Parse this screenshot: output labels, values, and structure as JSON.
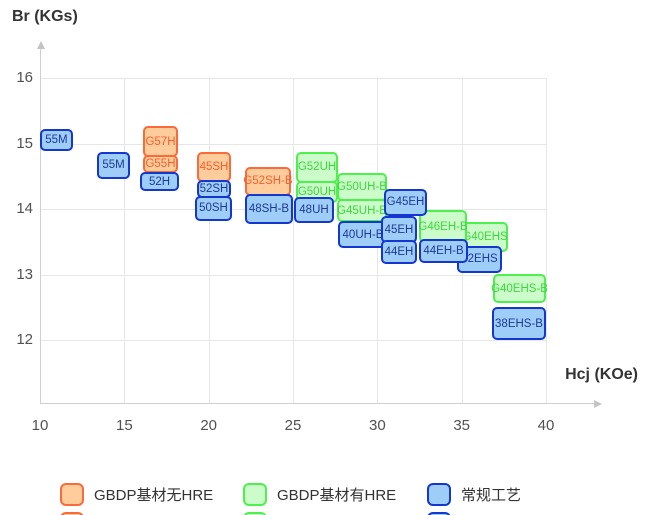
{
  "chart_data": {
    "type": "scatter",
    "mark_style": "labeled-range-box",
    "title": "",
    "xlabel": "Hcj (KOe)",
    "ylabel": "Br (KGs)",
    "x_ticks": [
      10,
      15,
      20,
      25,
      30,
      35,
      40
    ],
    "y_ticks": [
      16,
      15,
      14,
      13,
      12
    ],
    "xlim": [
      10,
      40
    ],
    "ylim": [
      12,
      16
    ],
    "grid": true,
    "legend_position": "bottom",
    "series_styles": {
      "gbdp_no_hre": {
        "name": "GBDP基材无HRE",
        "fill": "#ffcc9b",
        "border": "#fb6a3b",
        "text": "#f95e2d"
      },
      "gbdp_hre": {
        "name": "GBDP基材有HRE",
        "fill": "#cdfccb",
        "border": "#4ef04e",
        "text": "#3bd93b"
      },
      "conventional": {
        "name": "常规工艺",
        "fill": "#9ecdf8",
        "border": "#1437cf",
        "text": "#1c3a96"
      }
    },
    "points": [
      {
        "label": "G57H",
        "series": "gbdp_no_hre",
        "hcj": [
          16.11,
          18.18
        ],
        "br": [
          14.79,
          15.27
        ]
      },
      {
        "label": "G55H",
        "series": "gbdp_no_hre",
        "hcj": [
          16.11,
          18.18
        ],
        "br": [
          14.55,
          14.82
        ]
      },
      {
        "label": "45SH",
        "series": "gbdp_no_hre",
        "hcj": [
          19.31,
          21.32
        ],
        "br": [
          14.41,
          14.87
        ]
      },
      {
        "label": "G52SH-B",
        "series": "gbdp_no_hre",
        "hcj": [
          22.15,
          24.88
        ],
        "br": [
          14.2,
          14.64
        ]
      },
      {
        "label": "G52UH",
        "series": "gbdp_hre",
        "hcj": [
          25.18,
          27.67
        ],
        "br": [
          14.4,
          14.87
        ]
      },
      {
        "label": "G50UH",
        "series": "gbdp_hre",
        "hcj": [
          25.18,
          27.67
        ],
        "br": [
          14.09,
          14.43
        ]
      },
      {
        "label": "G50UH-B",
        "series": "gbdp_hre",
        "hcj": [
          27.61,
          30.57
        ],
        "br": [
          14.12,
          14.55
        ]
      },
      {
        "label": "G45UH-B",
        "series": "gbdp_hre",
        "hcj": [
          27.61,
          30.57
        ],
        "br": [
          13.8,
          14.15
        ]
      },
      {
        "label": "G40EHS",
        "series": "gbdp_hre",
        "hcj": [
          35.02,
          37.75
        ],
        "br": [
          13.34,
          13.8
        ]
      },
      {
        "label": "G46EH-B",
        "series": "gbdp_hre",
        "hcj": [
          32.47,
          35.32
        ],
        "br": [
          13.48,
          13.98
        ]
      },
      {
        "label": "G40EHS-B",
        "series": "gbdp_hre",
        "hcj": [
          36.86,
          40.0
        ],
        "br": [
          12.56,
          13.01
        ]
      },
      {
        "label": "55M",
        "series": "conventional",
        "hcj": [
          10.0,
          11.95
        ],
        "br": [
          14.89,
          15.22
        ]
      },
      {
        "label": "55M",
        "series": "conventional",
        "hcj": [
          13.38,
          15.34
        ],
        "br": [
          14.46,
          14.87
        ]
      },
      {
        "label": "52H",
        "series": "conventional",
        "hcj": [
          15.93,
          18.24
        ],
        "br": [
          14.27,
          14.56
        ]
      },
      {
        "label": "52SH",
        "series": "conventional",
        "hcj": [
          19.31,
          21.32
        ],
        "br": [
          14.17,
          14.44
        ]
      },
      {
        "label": "50SH",
        "series": "conventional",
        "hcj": [
          19.19,
          21.38
        ],
        "br": [
          13.82,
          14.2
        ]
      },
      {
        "label": "48SH-B",
        "series": "conventional",
        "hcj": [
          22.15,
          25.0
        ],
        "br": [
          13.77,
          14.23
        ]
      },
      {
        "label": "48UH",
        "series": "conventional",
        "hcj": [
          25.06,
          27.43
        ],
        "br": [
          13.79,
          14.18
        ]
      },
      {
        "label": "40UH-B",
        "series": "conventional",
        "hcj": [
          27.67,
          30.63
        ],
        "br": [
          13.4,
          13.82
        ]
      },
      {
        "label": "G45EH",
        "series": "conventional",
        "hcj": [
          30.4,
          32.94
        ],
        "br": [
          13.89,
          14.31
        ]
      },
      {
        "label": "45EH",
        "series": "conventional",
        "hcj": [
          30.22,
          32.35
        ],
        "br": [
          13.48,
          13.89
        ]
      },
      {
        "label": "44EH",
        "series": "conventional",
        "hcj": [
          30.22,
          32.35
        ],
        "br": [
          13.16,
          13.52
        ]
      },
      {
        "label": "42EHS",
        "series": "conventional",
        "hcj": [
          34.72,
          37.39
        ],
        "br": [
          13.02,
          13.44
        ]
      },
      {
        "label": "44EH-B",
        "series": "conventional",
        "hcj": [
          32.47,
          35.38
        ],
        "br": [
          13.18,
          13.54
        ]
      },
      {
        "label": "38EHS-B",
        "series": "conventional",
        "hcj": [
          36.8,
          40.0
        ],
        "br": [
          12.0,
          12.5
        ]
      }
    ]
  },
  "legend": {
    "items": [
      {
        "label": "GBDP基材无HRE",
        "series": "gbdp_no_hre"
      },
      {
        "label": "GBDP基材有HRE",
        "series": "gbdp_hre"
      },
      {
        "label": "常规工艺",
        "series": "conventional"
      }
    ]
  }
}
